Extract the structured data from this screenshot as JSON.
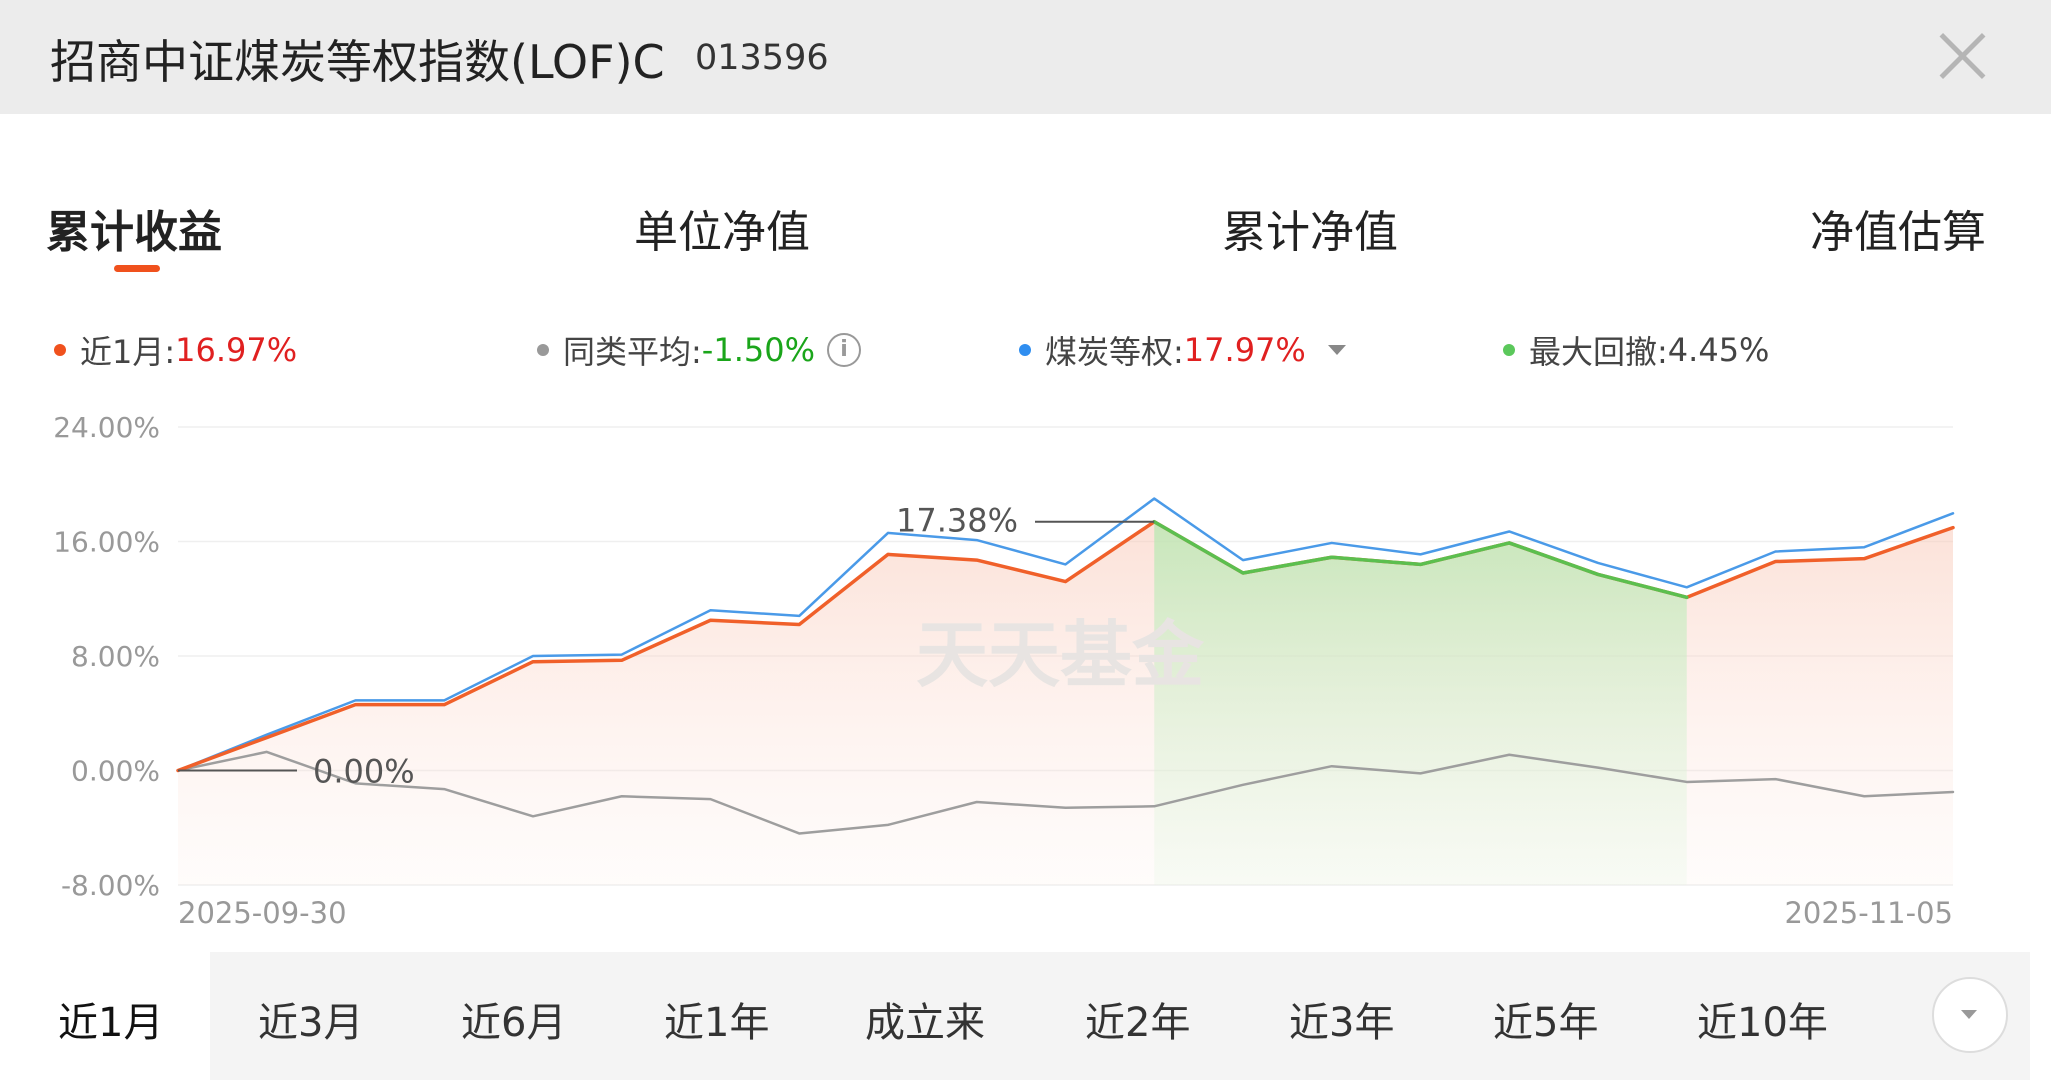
{
  "header": {
    "title": "招商中证煤炭等权指数(LOF)C",
    "code": "013596"
  },
  "tabs": [
    "累计收益",
    "单位净值",
    "累计净值",
    "净值估算"
  ],
  "legend": {
    "fund": {
      "label": "近1月:",
      "value": "16.97%",
      "color": "#f0511d",
      "value_color": "#e02020"
    },
    "peer": {
      "label": "同类平均:",
      "value": "-1.50%",
      "color": "#999999",
      "value_color": "#1aa51a"
    },
    "index": {
      "label": "煤炭等权:",
      "value": "17.97%",
      "color": "#2f8ef0",
      "value_color": "#e02020"
    },
    "drawdown": {
      "label": "最大回撤:",
      "value": "4.45%",
      "color": "#5bc85b",
      "value_color": "#222222"
    }
  },
  "chart_data": {
    "type": "line",
    "yticks": [
      "24.00%",
      "16.00%",
      "8.00%",
      "0.00%",
      "-8.00%"
    ],
    "ylim": [
      -8,
      24
    ],
    "x_start_label": "2025-09-30",
    "x_end_label": "2025-11-05",
    "watermark": "天天基金",
    "annotations": {
      "max_label": "17.38%",
      "start_label": "0.00%"
    },
    "drawdown_range": [
      11,
      17
    ],
    "series": [
      {
        "name": "近1月",
        "color": "#f0602a",
        "values": [
          0,
          2.3,
          4.6,
          4.6,
          7.6,
          7.7,
          10.5,
          10.2,
          15.1,
          14.7,
          13.2,
          17.38,
          13.8,
          14.9,
          14.4,
          15.9,
          13.7,
          12.1,
          14.6,
          14.8,
          16.97
        ]
      },
      {
        "name": "煤炭等权",
        "color": "#4a9ae8",
        "values": [
          0,
          2.5,
          4.9,
          4.9,
          8.0,
          8.1,
          11.2,
          10.8,
          16.6,
          16.1,
          14.4,
          19.0,
          14.7,
          15.9,
          15.1,
          16.7,
          14.5,
          12.8,
          15.3,
          15.6,
          17.97
        ]
      },
      {
        "name": "同类平均",
        "color": "#9e9e9e",
        "values": [
          0,
          1.3,
          -0.9,
          -1.3,
          -3.2,
          -1.8,
          -2.0,
          -4.4,
          -3.8,
          -2.2,
          -2.6,
          -2.5,
          -1.0,
          0.3,
          -0.2,
          1.1,
          0.2,
          -0.8,
          -0.6,
          -1.8,
          -1.5
        ]
      }
    ]
  },
  "periods": [
    "近1月",
    "近3月",
    "近6月",
    "近1年",
    "成立来",
    "近2年",
    "近3年",
    "近5年",
    "近10年"
  ]
}
